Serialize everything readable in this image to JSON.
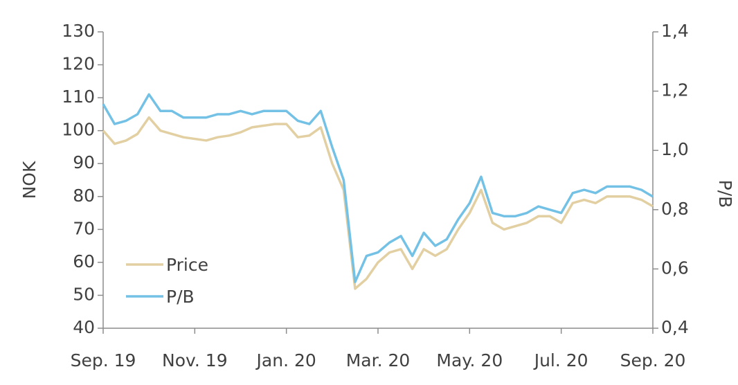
{
  "chart_data": {
    "type": "line",
    "categories": [
      "Sep. 19",
      null,
      null,
      null,
      null,
      null,
      null,
      null,
      "Nov. 19",
      null,
      null,
      null,
      null,
      null,
      null,
      null,
      "Jan. 20",
      null,
      null,
      null,
      null,
      null,
      null,
      null,
      "Mar. 20",
      null,
      null,
      null,
      null,
      null,
      null,
      null,
      "May. 20",
      null,
      null,
      null,
      null,
      null,
      null,
      null,
      "Jul. 20",
      null,
      null,
      null,
      null,
      null,
      null,
      null,
      "Sep. 20"
    ],
    "series": [
      {
        "name": "Price",
        "color": "#e2cfa2",
        "values": [
          100,
          96,
          97,
          99,
          104,
          100,
          99,
          98,
          97.5,
          97,
          98,
          98.5,
          99.5,
          101,
          101.5,
          102,
          102,
          98,
          98.5,
          101,
          90,
          82,
          52,
          55,
          60,
          63,
          64,
          58,
          64,
          62,
          64,
          70,
          75,
          82,
          72,
          70,
          71,
          72,
          74,
          74,
          72,
          78,
          79,
          78,
          80,
          80,
          80,
          79,
          77
        ]
      },
      {
        "name": "P/B",
        "color": "#74c1e6",
        "axis": "y2",
        "values": [
          1.156,
          1.089,
          1.1,
          1.122,
          1.189,
          1.133,
          1.133,
          1.111,
          1.111,
          1.111,
          1.122,
          1.122,
          1.133,
          1.122,
          1.133,
          1.133,
          1.133,
          1.1,
          1.089,
          1.133,
          1.011,
          0.9,
          0.556,
          0.644,
          0.656,
          0.689,
          0.711,
          0.644,
          0.722,
          0.678,
          0.7,
          0.767,
          0.822,
          0.911,
          0.789,
          0.778,
          0.778,
          0.789,
          0.811,
          0.8,
          0.789,
          0.856,
          0.867,
          0.856,
          0.878,
          0.878,
          0.878,
          0.867,
          0.844
        ]
      }
    ],
    "ylabel": "NOK",
    "y2label": "P/B",
    "ylim": [
      40,
      130
    ],
    "yticks": [
      40,
      50,
      60,
      70,
      80,
      90,
      100,
      110,
      120,
      130
    ],
    "y2lim": [
      0.4,
      1.4
    ],
    "y2ticks": [
      {
        "value": 0.4,
        "label": "0,4"
      },
      {
        "value": 0.6,
        "label": "0,6"
      },
      {
        "value": 0.8,
        "label": "0,8"
      },
      {
        "value": 1.0,
        "label": "1,0"
      },
      {
        "value": 1.2,
        "label": "1,2"
      },
      {
        "value": 1.4,
        "label": "1,4"
      }
    ],
    "legend": "lower left",
    "grid": false
  }
}
